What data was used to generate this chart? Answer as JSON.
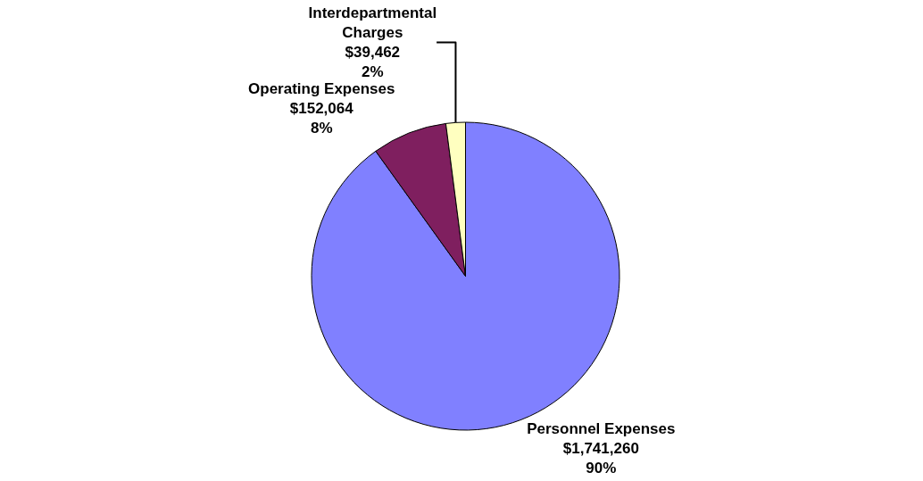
{
  "chart_data": {
    "type": "pie",
    "categories": [
      "Personnel Expenses",
      "Operating Expenses",
      "Interdepartmental\nCharges"
    ],
    "values": [
      1741260,
      152064,
      39462
    ],
    "value_labels": [
      "$1,741,260\n90%",
      "$152,064\n8%",
      "$39,462\n2%"
    ],
    "colors": [
      "#8080ff",
      "#7f1f5f",
      "#ffffc0"
    ],
    "legend": false
  }
}
